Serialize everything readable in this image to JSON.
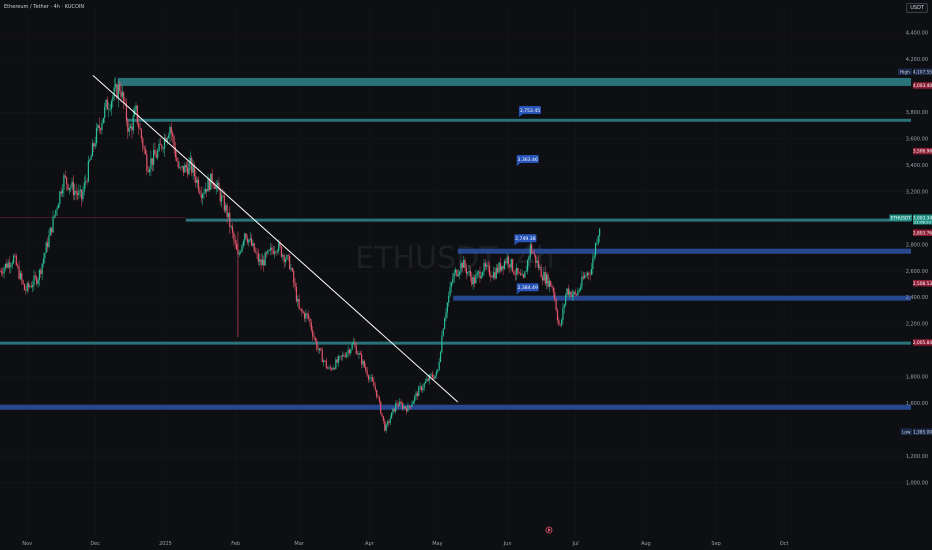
{
  "header": {
    "symbol_line": "Ethereum / Tether · 4h · KUCOIN",
    "currency": "USDT"
  },
  "watermark": "ETHUSDT, 4h",
  "colors": {
    "bg": "#0e0f12",
    "up": "#2bbf9a",
    "down": "#e5566c",
    "teal_zone": "#2e7d85",
    "blue_zone": "#2a4f9c",
    "label_blue": "#2754b8",
    "trend": "#ffffff"
  },
  "chart_data": {
    "type": "candlestick",
    "ylim": [
      900,
      4600
    ],
    "yticks": [
      "4,400.00",
      "4,200.00",
      "3,800.00",
      "3,600.00",
      "3,400.00",
      "3,200.00",
      "2,800.00",
      "2,600.00",
      "2,400.00",
      "2,200.00",
      "1,800.00",
      "1,600.00",
      "1,200.00",
      "1,000.00"
    ],
    "ytick_values": [
      4400,
      4200,
      3800,
      3600,
      3400,
      3200,
      2800,
      2600,
      2400,
      2200,
      1800,
      1600,
      1200,
      1000
    ],
    "xticks": [
      "Nov",
      "Dec",
      "2025",
      "Feb",
      "Mar",
      "Apr",
      "May",
      "Jun",
      "Jul",
      "Aug",
      "Sep",
      "Oct"
    ],
    "xtick_days": [
      0,
      30,
      61,
      92,
      120,
      151,
      181,
      212,
      242,
      273,
      304,
      334
    ],
    "x_start_day": -12,
    "x_end_day": 390,
    "anchors": [
      [
        -12,
        2600
      ],
      [
        -6,
        2700
      ],
      [
        -1,
        2450
      ],
      [
        5,
        2560
      ],
      [
        10,
        2880
      ],
      [
        16,
        3300
      ],
      [
        24,
        3150
      ],
      [
        30,
        3600
      ],
      [
        35,
        3850
      ],
      [
        41,
        4000
      ],
      [
        45,
        3650
      ],
      [
        48,
        3800
      ],
      [
        53,
        3400
      ],
      [
        58,
        3500
      ],
      [
        63,
        3700
      ],
      [
        67,
        3350
      ],
      [
        72,
        3400
      ],
      [
        77,
        3200
      ],
      [
        82,
        3300
      ],
      [
        88,
        3050
      ],
      [
        93,
        2700
      ],
      [
        96,
        2900
      ],
      [
        103,
        2650
      ],
      [
        110,
        2800
      ],
      [
        116,
        2650
      ],
      [
        120,
        2300
      ],
      [
        124,
        2250
      ],
      [
        128,
        2020
      ],
      [
        133,
        1850
      ],
      [
        138,
        1930
      ],
      [
        144,
        2050
      ],
      [
        149,
        1870
      ],
      [
        154,
        1690
      ],
      [
        158,
        1400
      ],
      [
        163,
        1600
      ],
      [
        168,
        1560
      ],
      [
        173,
        1700
      ],
      [
        178,
        1800
      ],
      [
        181,
        1820
      ],
      [
        184,
        2250
      ],
      [
        188,
        2560
      ],
      [
        192,
        2660
      ],
      [
        197,
        2520
      ],
      [
        201,
        2620
      ],
      [
        206,
        2580
      ],
      [
        212,
        2700
      ],
      [
        215,
        2600
      ],
      [
        219,
        2520
      ],
      [
        222,
        2780
      ],
      [
        227,
        2580
      ],
      [
        232,
        2480
      ],
      [
        235,
        2150
      ],
      [
        238,
        2460
      ],
      [
        242,
        2410
      ],
      [
        246,
        2560
      ],
      [
        249,
        2620
      ],
      [
        251,
        2820
      ],
      [
        253,
        2980
      ]
    ],
    "levels": [
      {
        "kind": "teal",
        "price": 4030,
        "x1": 40
      },
      {
        "kind": "teal",
        "price": 3740,
        "x1": 44
      },
      {
        "kind": "teal",
        "price": 2985,
        "x1": 70
      },
      {
        "kind": "blue",
        "price": 2750,
        "x1": 190
      },
      {
        "kind": "blue",
        "price": 2395,
        "x1": 188
      },
      {
        "kind": "teal",
        "price": 2055,
        "x1": -12
      },
      {
        "kind": "blue",
        "price": 1570,
        "x1": -12
      }
    ],
    "trendline": {
      "x1": 29,
      "y1": 4080,
      "x2": 190,
      "y2": 1610
    },
    "markers": [
      {
        "label": "3,753.45",
        "x": 217,
        "price": 3810
      },
      {
        "label": "3,363.46",
        "x": 216,
        "price": 3440
      },
      {
        "label": "2,749.38",
        "x": 215,
        "price": 2840
      },
      {
        "label": "2,384.49",
        "x": 216,
        "price": 2470
      }
    ],
    "price_tags": [
      {
        "label": "High",
        "value": "4,107.55",
        "price": 4107,
        "color": "#1b2a4a",
        "text": "#d1d4dc"
      },
      {
        "label": "",
        "value": "4,003.40",
        "price": 4003,
        "color": "#8c1d35",
        "text": "#ffffff"
      },
      {
        "label": "",
        "value": "3,506.96",
        "price": 3507,
        "color": "#8c1d35",
        "text": "#ffffff"
      },
      {
        "label": "ETHUSDT",
        "value": "3,003.34",
        "sub": "22:08:23",
        "price": 3003,
        "color": "#1e8f82",
        "text": "#ffffff"
      },
      {
        "label": "",
        "value": "2,803.76",
        "price": 2890,
        "color": "#8c1d35",
        "text": "#ffffff"
      },
      {
        "label": "",
        "value": "2,508.53",
        "price": 2508,
        "color": "#8c1d35",
        "text": "#ffffff"
      },
      {
        "label": "",
        "value": "2,005.84",
        "price": 2060,
        "color": "#8c1d35",
        "text": "#ffffff"
      },
      {
        "label": "Low",
        "value": "1,385.00",
        "price": 1385,
        "color": "#1b2a4a",
        "text": "#d1d4dc"
      }
    ]
  }
}
